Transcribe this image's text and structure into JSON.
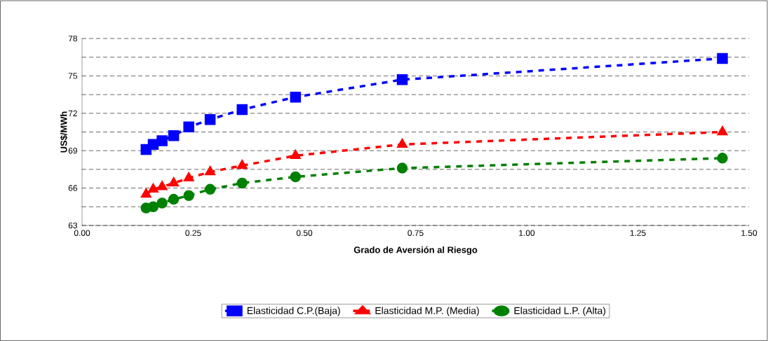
{
  "chart_data": {
    "type": "line",
    "xlabel": "Grado de Aversión al Riesgo",
    "ylabel": "US$/MWh",
    "x": [
      0.144,
      0.16,
      0.18,
      0.206,
      0.24,
      0.288,
      0.36,
      0.48,
      0.72,
      1.44
    ],
    "series": [
      {
        "name": "Elasticidad C.P.(Baja)",
        "color": "#0000ff",
        "marker": "square",
        "values": [
          69.1,
          69.5,
          69.8,
          70.2,
          70.9,
          71.5,
          72.3,
          73.3,
          74.7,
          76.4
        ]
      },
      {
        "name": "Elasticidad M.P. (Media)",
        "color": "#ff0000",
        "marker": "triangle",
        "values": [
          65.5,
          65.9,
          66.1,
          66.4,
          66.8,
          67.3,
          67.8,
          68.6,
          69.5,
          70.5
        ]
      },
      {
        "name": "Elasticidad L.P. (Alta)",
        "color": "#008000",
        "marker": "circle",
        "values": [
          64.4,
          64.5,
          64.8,
          65.1,
          65.4,
          65.9,
          66.4,
          66.9,
          67.6,
          68.4
        ]
      }
    ],
    "line_style": "dashed",
    "xlim": [
      0,
      1.5
    ],
    "xticks": [
      {
        "value": 0,
        "label": "0.00"
      },
      {
        "value": 0.125,
        "label": null
      },
      {
        "value": 0.25,
        "label": "0.25"
      },
      {
        "value": 0.375,
        "label": null
      },
      {
        "value": 0.5,
        "label": "0.50"
      },
      {
        "value": 0.625,
        "label": null
      },
      {
        "value": 0.75,
        "label": "0.75"
      },
      {
        "value": 0.875,
        "label": null
      },
      {
        "value": 1,
        "label": "1.00"
      },
      {
        "value": 1.125,
        "label": null
      },
      {
        "value": 1.25,
        "label": "1.25"
      },
      {
        "value": 1.375,
        "label": null
      },
      {
        "value": 1.5,
        "label": "1.50"
      }
    ],
    "ylim": [
      63,
      78
    ],
    "yticks": [
      63,
      {
        "value": 64.5,
        "label": null
      },
      66,
      {
        "value": 67.5,
        "label": null
      },
      69,
      {
        "value": 70.5,
        "label": null
      },
      72,
      {
        "value": 73.5,
        "label": null
      },
      75,
      {
        "value": 76.5,
        "label": null
      },
      78
    ],
    "grid": "y",
    "legend": "bottom"
  }
}
